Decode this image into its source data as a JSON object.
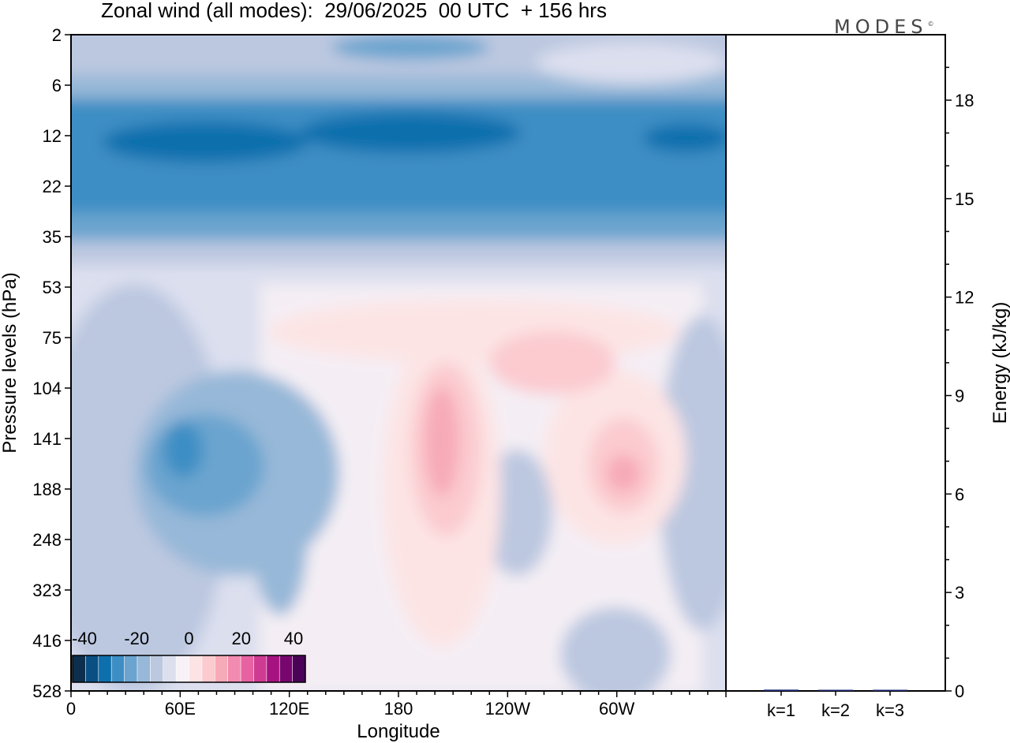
{
  "header": {
    "title": "Zonal wind (all modes):  29/06/2025  00 UTC  + 156 hrs",
    "logo": "MODES",
    "logo_mark": "©"
  },
  "chart_data": [
    {
      "type": "heatmap",
      "title": "Zonal wind (all modes):  29/06/2025  00 UTC  + 156 hrs",
      "xlabel": "Longitude",
      "ylabel": "Pressure levels (hPa)",
      "x_ticks": [
        "0",
        "60E",
        "120E",
        "180",
        "120W",
        "60W"
      ],
      "y_ticks": [
        "2",
        "6",
        "12",
        "22",
        "35",
        "53",
        "75",
        "104",
        "141",
        "188",
        "248",
        "323",
        "416",
        "528"
      ],
      "colorbar": {
        "tick_labels": [
          "-40",
          "-20",
          "0",
          "20",
          "40"
        ],
        "colors": [
          "#0d2f4d",
          "#0a4f84",
          "#0e6fad",
          "#3d8ec4",
          "#6ba4cf",
          "#97b8d8",
          "#bcc8e0",
          "#dcdfee",
          "#f8f1f6",
          "#fde4e4",
          "#fbcbd0",
          "#f7aab8",
          "#f38ab0",
          "#e762a1",
          "#cf3a92",
          "#a61380",
          "#79066f",
          "#4b0357"
        ]
      }
    },
    {
      "type": "bar",
      "ylabel": "Energy (kJ/kg)",
      "categories": [
        "k=1",
        "k=2",
        "k=3"
      ],
      "values": [
        0.04,
        0.02,
        0.01
      ],
      "ylim": [
        0,
        20
      ],
      "y_ticks": [
        "0",
        "3",
        "6",
        "9",
        "12",
        "15",
        "18"
      ]
    }
  ]
}
